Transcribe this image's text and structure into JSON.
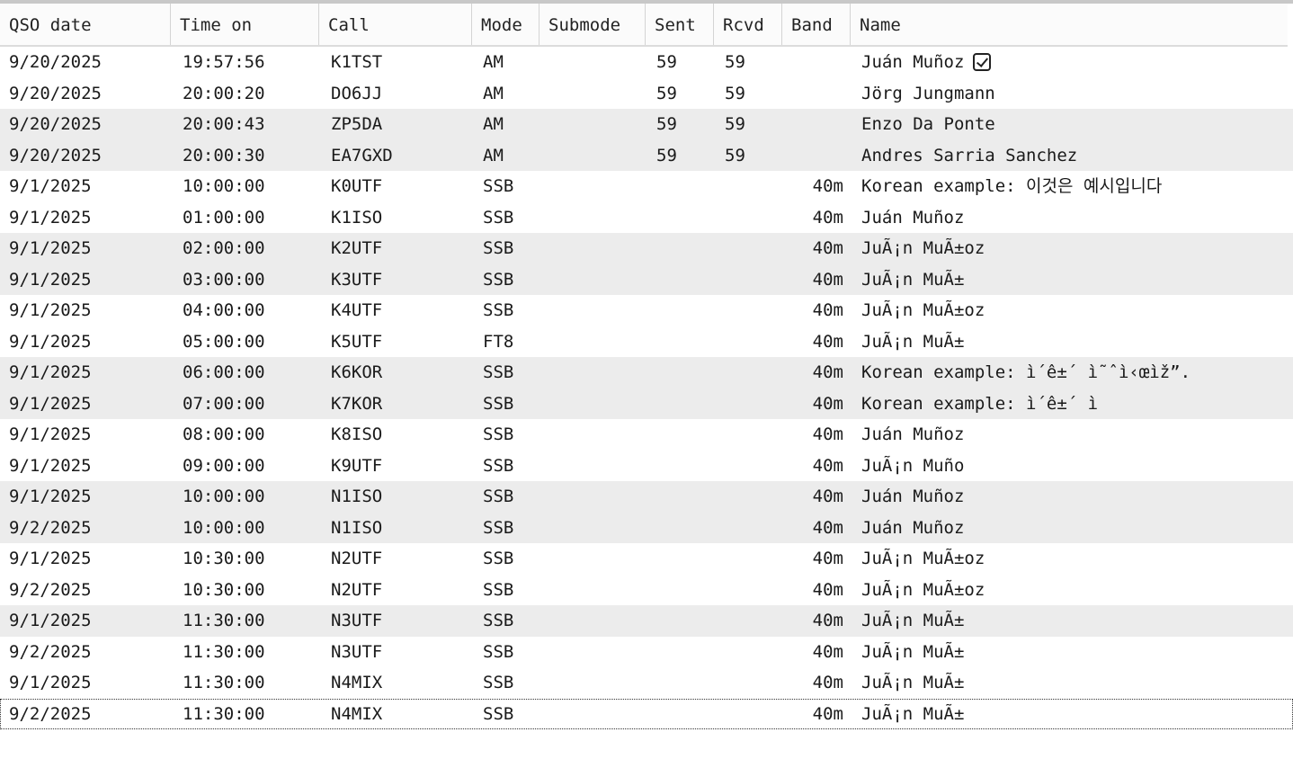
{
  "columns": [
    "QSO date",
    "Time on",
    "Call",
    "Mode",
    "Submode",
    "Sent",
    "Rcvd",
    "Band",
    "Name"
  ],
  "rows": [
    {
      "date": "9/20/2025",
      "time": "19:57:56",
      "call": "K1TST",
      "mode": "AM",
      "submode": "",
      "sent": "59",
      "rcvd": "59",
      "band": "",
      "name": "Juán Muñoz",
      "checked": true,
      "selected": false
    },
    {
      "date": "9/20/2025",
      "time": "20:00:20",
      "call": "DO6JJ",
      "mode": "AM",
      "submode": "",
      "sent": "59",
      "rcvd": "59",
      "band": "",
      "name": "Jörg Jungmann",
      "selected": false
    },
    {
      "date": "9/20/2025",
      "time": "20:00:43",
      "call": "ZP5DA",
      "mode": "AM",
      "submode": "",
      "sent": "59",
      "rcvd": "59",
      "band": "",
      "name": "Enzo Da Ponte",
      "selected": true
    },
    {
      "date": "9/20/2025",
      "time": "20:00:30",
      "call": "EA7GXD",
      "mode": "AM",
      "submode": "",
      "sent": "59",
      "rcvd": "59",
      "band": "",
      "name": "Andres Sarria Sanchez",
      "selected": true
    },
    {
      "date": "9/1/2025",
      "time": "10:00:00",
      "call": "K0UTF",
      "mode": "SSB",
      "submode": "",
      "sent": "",
      "rcvd": "",
      "band": "40m",
      "name": "Korean example: 이것은 예시입니다",
      "selected": false
    },
    {
      "date": "9/1/2025",
      "time": "01:00:00",
      "call": "K1ISO",
      "mode": "SSB",
      "submode": "",
      "sent": "",
      "rcvd": "",
      "band": "40m",
      "name": "Juán Muñoz",
      "selected": false
    },
    {
      "date": "9/1/2025",
      "time": "02:00:00",
      "call": "K2UTF",
      "mode": "SSB",
      "submode": "",
      "sent": "",
      "rcvd": "",
      "band": "40m",
      "name": "JuÃ¡n MuÃ±oz",
      "selected": true
    },
    {
      "date": "9/1/2025",
      "time": "03:00:00",
      "call": "K3UTF",
      "mode": "SSB",
      "submode": "",
      "sent": "",
      "rcvd": "",
      "band": "40m",
      "name": "JuÃ¡n MuÃ±",
      "selected": true
    },
    {
      "date": "9/1/2025",
      "time": "04:00:00",
      "call": "K4UTF",
      "mode": "SSB",
      "submode": "",
      "sent": "",
      "rcvd": "",
      "band": "40m",
      "name": "JuÃ¡n MuÃ±oz",
      "selected": false
    },
    {
      "date": "9/1/2025",
      "time": "05:00:00",
      "call": "K5UTF",
      "mode": "FT8",
      "submode": "",
      "sent": "",
      "rcvd": "",
      "band": "40m",
      "name": "JuÃ¡n MuÃ±",
      "selected": false
    },
    {
      "date": "9/1/2025",
      "time": "06:00:00",
      "call": "K6KOR",
      "mode": "SSB",
      "submode": "",
      "sent": "",
      "rcvd": "",
      "band": "40m",
      "name": "Korean example: ì´ê±´ ì˜ˆì‹œìž”.",
      "selected": true
    },
    {
      "date": "9/1/2025",
      "time": "07:00:00",
      "call": "K7KOR",
      "mode": "SSB",
      "submode": "",
      "sent": "",
      "rcvd": "",
      "band": "40m",
      "name": "Korean example: ì´ê±´ ì",
      "selected": true
    },
    {
      "date": "9/1/2025",
      "time": "08:00:00",
      "call": "K8ISO",
      "mode": "SSB",
      "submode": "",
      "sent": "",
      "rcvd": "",
      "band": "40m",
      "name": "Juán Muñoz",
      "selected": false
    },
    {
      "date": "9/1/2025",
      "time": "09:00:00",
      "call": "K9UTF",
      "mode": "SSB",
      "submode": "",
      "sent": "",
      "rcvd": "",
      "band": "40m",
      "name": "JuÃ¡n Muño",
      "selected": false
    },
    {
      "date": "9/1/2025",
      "time": "10:00:00",
      "call": "N1ISO",
      "mode": "SSB",
      "submode": "",
      "sent": "",
      "rcvd": "",
      "band": "40m",
      "name": "Juán Muñoz",
      "selected": true
    },
    {
      "date": "9/2/2025",
      "time": "10:00:00",
      "call": "N1ISO",
      "mode": "SSB",
      "submode": "",
      "sent": "",
      "rcvd": "",
      "band": "40m",
      "name": "Juán Muñoz",
      "selected": true
    },
    {
      "date": "9/1/2025",
      "time": "10:30:00",
      "call": "N2UTF",
      "mode": "SSB",
      "submode": "",
      "sent": "",
      "rcvd": "",
      "band": "40m",
      "name": "JuÃ¡n MuÃ±oz",
      "selected": false
    },
    {
      "date": "9/2/2025",
      "time": "10:30:00",
      "call": "N2UTF",
      "mode": "SSB",
      "submode": "",
      "sent": "",
      "rcvd": "",
      "band": "40m",
      "name": "JuÃ¡n MuÃ±oz",
      "selected": false
    },
    {
      "date": "9/1/2025",
      "time": "11:30:00",
      "call": "N3UTF",
      "mode": "SSB",
      "submode": "",
      "sent": "",
      "rcvd": "",
      "band": "40m",
      "name": "JuÃ¡n MuÃ±",
      "selected": true
    },
    {
      "date": "9/2/2025",
      "time": "11:30:00",
      "call": "N3UTF",
      "mode": "SSB",
      "submode": "",
      "sent": "",
      "rcvd": "",
      "band": "40m",
      "name": "JuÃ¡n MuÃ±",
      "selected": false
    },
    {
      "date": "9/1/2025",
      "time": "11:30:00",
      "call": "N4MIX",
      "mode": "SSB",
      "submode": "",
      "sent": "",
      "rcvd": "",
      "band": "40m",
      "name": "JuÃ¡n MuÃ±",
      "selected": false
    },
    {
      "date": "9/2/2025",
      "time": "11:30:00",
      "call": "N4MIX",
      "mode": "SSB",
      "submode": "",
      "sent": "",
      "rcvd": "",
      "band": "40m",
      "name": "JuÃ¡n MuÃ±",
      "selected": false,
      "focused": true
    }
  ]
}
